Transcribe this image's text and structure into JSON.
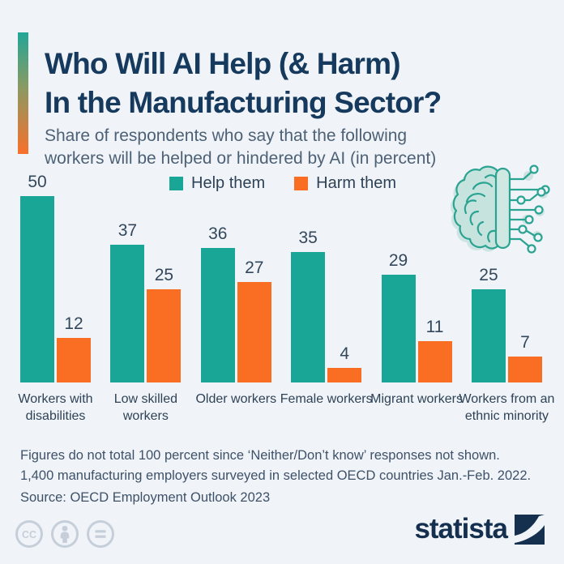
{
  "page": {
    "background_color": "#f0f4f8"
  },
  "header": {
    "title_line1": "Who Will AI Help (& Harm)",
    "title_line2": "In the Manufacturing Sector?",
    "subtitle_line1": "Share of respondents who say that the following",
    "subtitle_line2": "workers will be helped or hindered by AI (in percent)",
    "accent_gradient_top": "#21a797",
    "accent_gradient_bottom": "#f8702b"
  },
  "legend": {
    "items": [
      {
        "label": "Help them",
        "color": "#1aa697"
      },
      {
        "label": "Harm them",
        "color": "#fa6e23"
      }
    ]
  },
  "chart_data": {
    "type": "bar",
    "categories": [
      "Workers with disabilities",
      "Low skilled workers",
      "Older workers",
      "Female workers",
      "Migrant workers",
      "Workers from an ethnic minority"
    ],
    "series": [
      {
        "name": "Help them",
        "color": "#1aa697",
        "values": [
          50,
          37,
          36,
          35,
          29,
          25
        ]
      },
      {
        "name": "Harm them",
        "color": "#fa6e23",
        "values": [
          12,
          25,
          27,
          4,
          11,
          7
        ]
      }
    ],
    "title": "Who Will AI Help (& Harm) In the Manufacturing Sector?",
    "xlabel": "",
    "ylabel": "",
    "ylim": [
      0,
      50
    ],
    "grid": false,
    "value_labels": true,
    "legend_position": "top"
  },
  "footer": {
    "line1": "Figures do not total 100 percent since ‘Neither/Don’t know’ responses not shown.",
    "line2": "1,400 manufacturing employers surveyed in selected OECD countries Jan.-Feb. 2022.",
    "line3": "Source: OECD Employment Outlook 2023"
  },
  "branding": {
    "logo_text": "statista",
    "license_icons": [
      "cc-icon",
      "cc-by-person-icon",
      "cc-nd-equals-icon"
    ]
  }
}
